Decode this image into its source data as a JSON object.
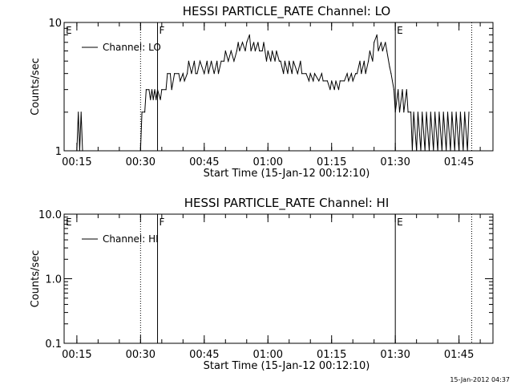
{
  "footer_timestamp": "15-Jan-2012 04:37",
  "chart_data": [
    {
      "type": "line",
      "title": "HESSI PARTICLE_RATE Channel: LO",
      "xlabel": "Start Time (15-Jan-12 00:12:10)",
      "ylabel": "Counts/sec",
      "yscale": "log",
      "ylim": [
        1,
        10
      ],
      "xlim": [
        "00:12",
        "01:53"
      ],
      "x_tick_labels": [
        "00:15",
        "00:30",
        "00:45",
        "01:00",
        "01:15",
        "01:30",
        "01:45"
      ],
      "y_tick_labels": [
        "1",
        "10"
      ],
      "legend": {
        "entries": [
          "Channel: LO"
        ],
        "placement": "top-left"
      },
      "grid": false,
      "markers": [
        {
          "label": "E",
          "time": "00:12",
          "style": "dotted"
        },
        {
          "label": "",
          "time": "00:30",
          "style": "dotted"
        },
        {
          "label": "F",
          "time": "00:34",
          "style": "solid"
        },
        {
          "label": "E",
          "time": "01:30",
          "style": "solid"
        },
        {
          "label": "",
          "time": "01:48",
          "style": "dotted"
        }
      ],
      "series": [
        {
          "name": "Channel: LO",
          "points": [
            [
              "00:15:00",
              1
            ],
            [
              "00:15:20",
              2
            ],
            [
              "00:15:40",
              1
            ],
            [
              "00:16:00",
              2
            ],
            [
              "00:16:20",
              1
            ],
            [
              "00:30:00",
              1
            ],
            [
              "00:30:20",
              2
            ],
            [
              "00:31:00",
              2
            ],
            [
              "00:31:20",
              3
            ],
            [
              "00:32:00",
              3
            ],
            [
              "00:32:20",
              2.5
            ],
            [
              "00:32:40",
              3
            ],
            [
              "00:33:00",
              2.5
            ],
            [
              "00:33:20",
              3
            ],
            [
              "00:33:40",
              2.5
            ],
            [
              "00:34:00",
              3
            ],
            [
              "00:34:40",
              2.5
            ],
            [
              "00:35:00",
              3
            ],
            [
              "00:36:00",
              3
            ],
            [
              "00:36:20",
              4
            ],
            [
              "00:37:00",
              4
            ],
            [
              "00:37:20",
              3
            ],
            [
              "00:38:00",
              4
            ],
            [
              "00:39:00",
              4
            ],
            [
              "00:39:20",
              3.5
            ],
            [
              "00:40:00",
              4
            ],
            [
              "00:40:20",
              3.5
            ],
            [
              "00:41:00",
              4
            ],
            [
              "00:41:20",
              5
            ],
            [
              "00:42:00",
              4
            ],
            [
              "00:42:40",
              5
            ],
            [
              "00:43:00",
              4
            ],
            [
              "00:43:20",
              4
            ],
            [
              "00:44:00",
              5
            ],
            [
              "00:45:00",
              4
            ],
            [
              "00:45:40",
              5
            ],
            [
              "00:46:00",
              4
            ],
            [
              "00:46:40",
              5
            ],
            [
              "00:47:20",
              4
            ],
            [
              "00:48:00",
              5
            ],
            [
              "00:48:20",
              4
            ],
            [
              "00:49:00",
              5
            ],
            [
              "00:49:40",
              5
            ],
            [
              "00:50:00",
              6
            ],
            [
              "00:50:40",
              5
            ],
            [
              "00:51:20",
              6
            ],
            [
              "00:52:00",
              5
            ],
            [
              "00:52:40",
              6
            ],
            [
              "00:53:00",
              7
            ],
            [
              "00:53:20",
              6
            ],
            [
              "00:54:00",
              7
            ],
            [
              "00:54:40",
              6
            ],
            [
              "00:55:00",
              7
            ],
            [
              "00:55:40",
              8
            ],
            [
              "00:56:00",
              6
            ],
            [
              "00:56:40",
              7
            ],
            [
              "00:57:00",
              6
            ],
            [
              "00:57:40",
              7
            ],
            [
              "00:58:00",
              6
            ],
            [
              "00:58:40",
              6
            ],
            [
              "00:59:00",
              7
            ],
            [
              "00:59:40",
              5
            ],
            [
              "01:00:00",
              6
            ],
            [
              "01:00:40",
              5
            ],
            [
              "01:01:00",
              6
            ],
            [
              "01:01:40",
              5
            ],
            [
              "01:02:00",
              6
            ],
            [
              "01:02:40",
              5
            ],
            [
              "01:03:00",
              5
            ],
            [
              "01:03:40",
              4
            ],
            [
              "01:04:00",
              5
            ],
            [
              "01:04:40",
              4
            ],
            [
              "01:05:00",
              5
            ],
            [
              "01:05:40",
              4
            ],
            [
              "01:06:00",
              5
            ],
            [
              "01:07:00",
              4
            ],
            [
              "01:07:40",
              5
            ],
            [
              "01:08:00",
              4
            ],
            [
              "01:09:00",
              4
            ],
            [
              "01:09:40",
              3.5
            ],
            [
              "01:10:00",
              4
            ],
            [
              "01:10:40",
              3.5
            ],
            [
              "01:11:00",
              4
            ],
            [
              "01:12:00",
              3.5
            ],
            [
              "01:12:40",
              4
            ],
            [
              "01:13:00",
              3.5
            ],
            [
              "01:14:00",
              3.5
            ],
            [
              "01:14:40",
              3
            ],
            [
              "01:15:00",
              3.5
            ],
            [
              "01:15:40",
              3
            ],
            [
              "01:16:00",
              3.5
            ],
            [
              "01:16:40",
              3
            ],
            [
              "01:17:00",
              3.5
            ],
            [
              "01:18:00",
              3.5
            ],
            [
              "01:18:40",
              4
            ],
            [
              "01:19:00",
              3.5
            ],
            [
              "01:19:40",
              4
            ],
            [
              "01:20:00",
              3.5
            ],
            [
              "01:20:40",
              4
            ],
            [
              "01:21:00",
              4
            ],
            [
              "01:21:40",
              5
            ],
            [
              "01:22:00",
              4
            ],
            [
              "01:22:40",
              5
            ],
            [
              "01:23:00",
              4
            ],
            [
              "01:23:40",
              5
            ],
            [
              "01:24:00",
              6
            ],
            [
              "01:24:40",
              5
            ],
            [
              "01:25:00",
              7
            ],
            [
              "01:25:40",
              8
            ],
            [
              "01:26:00",
              6
            ],
            [
              "01:26:40",
              7
            ],
            [
              "01:27:00",
              6
            ],
            [
              "01:27:40",
              7
            ],
            [
              "01:28:00",
              6
            ],
            [
              "01:28:40",
              4.5
            ],
            [
              "01:29:00",
              4
            ],
            [
              "01:29:40",
              3
            ],
            [
              "01:30:00",
              2
            ],
            [
              "01:30:40",
              3
            ],
            [
              "01:31:00",
              2
            ],
            [
              "01:31:40",
              3
            ],
            [
              "01:32:00",
              2
            ],
            [
              "01:32:40",
              3
            ],
            [
              "01:33:00",
              2
            ],
            [
              "01:33:40",
              2
            ],
            [
              "01:34:00",
              1
            ],
            [
              "01:34:20",
              2
            ],
            [
              "01:35:00",
              1
            ],
            [
              "01:35:20",
              2
            ],
            [
              "01:36:00",
              1
            ],
            [
              "01:36:20",
              2
            ],
            [
              "01:37:00",
              1
            ],
            [
              "01:37:20",
              2
            ],
            [
              "01:38:00",
              1
            ],
            [
              "01:38:20",
              2
            ],
            [
              "01:39:00",
              1
            ],
            [
              "01:39:20",
              2
            ],
            [
              "01:40:00",
              1
            ],
            [
              "01:40:20",
              2
            ],
            [
              "01:41:00",
              1
            ],
            [
              "01:41:20",
              2
            ],
            [
              "01:42:00",
              1
            ],
            [
              "01:42:20",
              2
            ],
            [
              "01:43:00",
              1
            ],
            [
              "01:43:20",
              2
            ],
            [
              "01:44:00",
              1
            ],
            [
              "01:44:20",
              2
            ],
            [
              "01:45:00",
              1
            ],
            [
              "01:45:20",
              2
            ],
            [
              "01:46:00",
              1
            ],
            [
              "01:46:20",
              2
            ],
            [
              "01:47:00",
              1
            ],
            [
              "01:47:20",
              2
            ]
          ]
        }
      ]
    },
    {
      "type": "line",
      "title": "HESSI PARTICLE_RATE Channel: HI",
      "xlabel": "Start Time (15-Jan-12 00:12:10)",
      "ylabel": "Counts/sec",
      "yscale": "log",
      "ylim": [
        0.1,
        10
      ],
      "xlim": [
        "00:12",
        "01:53"
      ],
      "x_tick_labels": [
        "00:15",
        "00:30",
        "00:45",
        "01:00",
        "01:15",
        "01:30",
        "01:45"
      ],
      "y_tick_labels": [
        "0.1",
        "1.0",
        "10.0"
      ],
      "legend": {
        "entries": [
          "Channel: HI"
        ],
        "placement": "top-left"
      },
      "grid": false,
      "markers": [
        {
          "label": "E",
          "time": "00:12",
          "style": "dotted"
        },
        {
          "label": "",
          "time": "00:30",
          "style": "dotted"
        },
        {
          "label": "F",
          "time": "00:34",
          "style": "solid"
        },
        {
          "label": "E",
          "time": "01:30",
          "style": "solid"
        },
        {
          "label": "",
          "time": "01:48",
          "style": "dotted"
        }
      ],
      "series": [
        {
          "name": "Channel: HI",
          "points": []
        }
      ]
    }
  ]
}
